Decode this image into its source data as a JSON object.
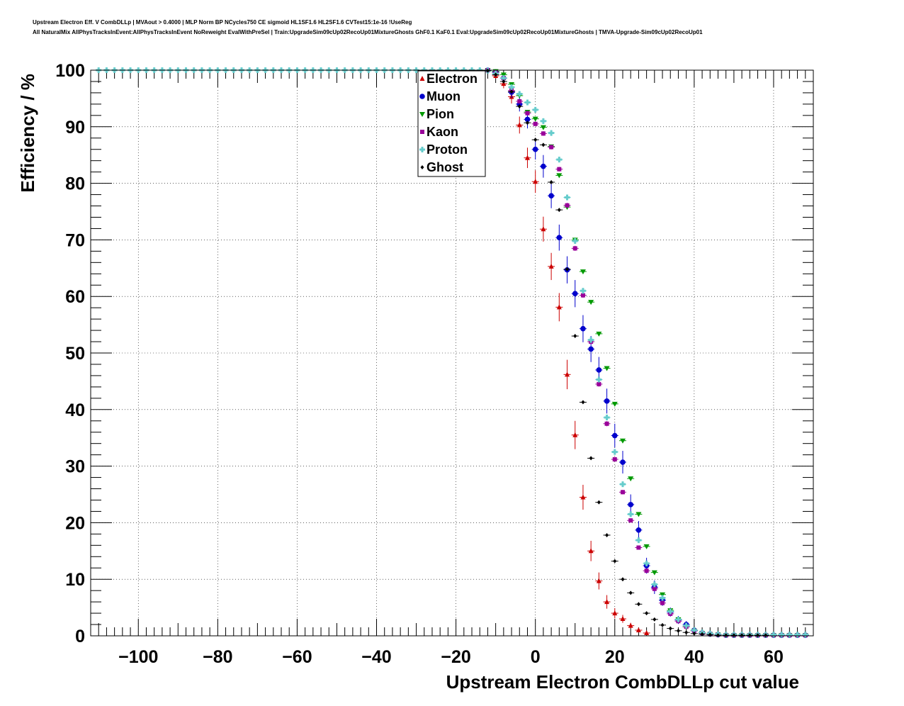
{
  "header": {
    "title_line1": "Upstream Electron Eff. V CombDLLp | MVAout > 0.4000 | MLP Norm BP NCycles750 CE sigmoid HL1SF1.6 HL2SF1.6 CVTest15:1e-16 !UseReg",
    "title_line2": "All NaturalMix AllPhysTracksInEvent:AllPhysTracksInEvent NoReweight EvalWithPreSel | Train:UpgradeSim09cUp02RecoUp01MixtureGhosts GhF0.1 KaF0.1 Eval:UpgradeSim09cUp02RecoUp01MixtureGhosts | TMVA-Upgrade-Sim09cUp02RecoUp01"
  },
  "chart_data": {
    "type": "scatter",
    "xlabel": "Upstream Electron CombDLLp cut value",
    "ylabel": "Efficiency / %",
    "xlim": [
      -112,
      70
    ],
    "ylim": [
      0,
      100
    ],
    "xticks": [
      -100,
      -80,
      -60,
      -40,
      -20,
      0,
      20,
      40,
      60
    ],
    "xtick_labels": [
      "−100",
      "−80",
      "−60",
      "−40",
      "−20",
      "0",
      "20",
      "40",
      "60"
    ],
    "yticks": [
      0,
      10,
      20,
      30,
      40,
      50,
      60,
      70,
      80,
      90,
      100
    ],
    "ytick_labels": [
      "0",
      "10",
      "20",
      "30",
      "40",
      "50",
      "60",
      "70",
      "80",
      "90",
      "100"
    ],
    "grid": true,
    "legend_position": "top-center",
    "plateau": {
      "x_start": -110,
      "x_end": -12,
      "step": 2,
      "y": 100
    },
    "series": [
      {
        "name": "Electron",
        "color": "#cc0000",
        "marker": "triangle-up",
        "x": [
          -10,
          -8,
          -6,
          -4,
          -2,
          0,
          2,
          4,
          6,
          8,
          10,
          12,
          14,
          16,
          18,
          20,
          22,
          24,
          26,
          28
        ],
        "y": [
          99.0,
          97.6,
          95.3,
          90.3,
          84.5,
          80.3,
          71.9,
          65.3,
          58.1,
          46.2,
          35.5,
          24.5,
          15.0,
          9.7,
          6.0,
          4.0,
          3.0,
          1.8,
          1.0,
          0.5
        ],
        "err": [
          0.5,
          0.8,
          1.2,
          1.5,
          1.8,
          2.0,
          2.2,
          2.4,
          2.5,
          2.6,
          2.5,
          2.2,
          1.8,
          1.5,
          1.2,
          0.9,
          0.7,
          0.5,
          0.4,
          0.3
        ]
      },
      {
        "name": "Muon",
        "color": "#0000cc",
        "marker": "circle",
        "x": [
          -12,
          -10,
          -8,
          -6,
          -4,
          -2,
          0,
          2,
          4,
          6,
          8,
          10,
          12,
          14,
          16,
          18,
          20,
          22,
          24,
          26,
          28,
          30,
          32,
          34,
          36,
          38,
          40,
          42,
          44,
          46,
          48,
          50,
          52,
          54,
          56,
          58,
          60,
          62,
          64,
          66,
          68
        ],
        "y": [
          100.0,
          99.7,
          98.6,
          96.1,
          94.0,
          91.3,
          86.0,
          83.0,
          77.8,
          70.4,
          64.7,
          60.5,
          54.3,
          50.7,
          47.0,
          41.5,
          35.4,
          30.7,
          23.2,
          18.7,
          12.4,
          8.6,
          6.3,
          4.2,
          2.8,
          2.0,
          1.0,
          0.5,
          0.3,
          0.2,
          0.1,
          0.1,
          0.1,
          0.1,
          0.1,
          0.1,
          0.1,
          0.1,
          0.1,
          0.1,
          0.1
        ],
        "err": [
          0.1,
          0.3,
          0.6,
          1.0,
          1.3,
          1.6,
          1.8,
          2.0,
          2.2,
          2.3,
          2.4,
          2.4,
          2.4,
          2.3,
          2.3,
          2.2,
          2.1,
          2.0,
          1.8,
          1.6,
          1.4,
          1.2,
          1.0,
          0.8,
          0.7,
          0.6,
          0.4,
          0.3,
          0.2,
          0.1,
          0.1,
          0.1,
          0.1,
          0.1,
          0.1,
          0.1,
          0.1,
          0.1,
          0.1,
          0.1,
          0.1
        ]
      },
      {
        "name": "Pion",
        "color": "#009900",
        "marker": "triangle-down",
        "x": [
          -12,
          -10,
          -8,
          -6,
          -4,
          -2,
          0,
          2,
          4,
          6,
          8,
          10,
          12,
          14,
          16,
          18,
          20,
          22,
          24,
          26,
          28,
          30,
          32,
          34,
          36,
          38,
          40,
          42,
          44,
          46,
          48,
          50,
          52,
          54,
          56,
          58,
          60,
          62,
          64,
          66,
          68
        ],
        "y": [
          100.0,
          99.8,
          99.2,
          97.5,
          95.5,
          92.6,
          91.4,
          89.9,
          86.5,
          81.4,
          75.8,
          70.0,
          64.4,
          59.0,
          53.4,
          47.3,
          41.0,
          34.5,
          27.8,
          21.5,
          15.8,
          11.2,
          7.3,
          4.5,
          2.9,
          1.6,
          0.9,
          0.5,
          0.3,
          0.2,
          0.1,
          0.1,
          0.1,
          0.1,
          0.1,
          0.1,
          0.1,
          0.1,
          0.1,
          0.1,
          0.1
        ],
        "err": [
          0.05,
          0.1,
          0.15,
          0.2,
          0.25,
          0.3,
          0.3,
          0.3,
          0.3,
          0.35,
          0.35,
          0.35,
          0.35,
          0.35,
          0.35,
          0.35,
          0.35,
          0.35,
          0.3,
          0.3,
          0.3,
          0.25,
          0.2,
          0.15,
          0.1,
          0.1,
          0.1,
          0.05,
          0.05,
          0.05,
          0.05,
          0.05,
          0.05,
          0.05,
          0.05,
          0.05,
          0.05,
          0.05,
          0.05,
          0.05,
          0.05
        ]
      },
      {
        "name": "Kaon",
        "color": "#990099",
        "marker": "square",
        "x": [
          -12,
          -10,
          -8,
          -6,
          -4,
          -2,
          0,
          2,
          4,
          6,
          8,
          10,
          12,
          14,
          16,
          18,
          20,
          22,
          24,
          26,
          28,
          30,
          32,
          34,
          36,
          38,
          40,
          42,
          44,
          46,
          48,
          50,
          52,
          54,
          56,
          58,
          60,
          62,
          64,
          66,
          68
        ],
        "y": [
          100.0,
          99.6,
          98.6,
          96.4,
          94.5,
          92.4,
          90.5,
          88.8,
          86.4,
          82.5,
          76.1,
          68.5,
          60.2,
          52.0,
          44.5,
          37.5,
          31.2,
          25.4,
          20.4,
          15.6,
          11.5,
          8.3,
          5.8,
          3.9,
          2.6,
          1.6,
          0.9,
          0.5,
          0.3,
          0.2,
          0.1,
          0.1,
          0.1,
          0.1,
          0.1,
          0.1,
          0.1,
          0.1,
          0.1,
          0.1,
          0.1
        ],
        "err": [
          0.05,
          0.1,
          0.2,
          0.3,
          0.3,
          0.35,
          0.35,
          0.4,
          0.4,
          0.4,
          0.45,
          0.45,
          0.45,
          0.45,
          0.45,
          0.45,
          0.4,
          0.4,
          0.35,
          0.35,
          0.3,
          0.25,
          0.2,
          0.15,
          0.1,
          0.1,
          0.1,
          0.05,
          0.05,
          0.05,
          0.05,
          0.05,
          0.05,
          0.05,
          0.05,
          0.05,
          0.05,
          0.05,
          0.05,
          0.05,
          0.05
        ]
      },
      {
        "name": "Proton",
        "color": "#66cccc",
        "marker": "cross",
        "x": [
          -110,
          -108,
          -106,
          -104,
          -102,
          -100,
          -98,
          -96,
          -94,
          -92,
          -90,
          -88,
          -86,
          -84,
          -82,
          -80,
          -78,
          -76,
          -74,
          -72,
          -70,
          -68,
          -66,
          -64,
          -62,
          -60,
          -58,
          -56,
          -54,
          -52,
          -50,
          -48,
          -46,
          -44,
          -42,
          -40,
          -38,
          -36,
          -34,
          -32,
          -30,
          -28,
          -26,
          -24,
          -22,
          -20,
          -18,
          -16,
          -14,
          -12,
          -10,
          -8,
          -6,
          -4,
          -2,
          0,
          2,
          4,
          6,
          8,
          10,
          12,
          14,
          16,
          18,
          20,
          22,
          24,
          26,
          28,
          30,
          32,
          34,
          36,
          38,
          40,
          42,
          44,
          46,
          48,
          50,
          52,
          54,
          56,
          58,
          60,
          62,
          64,
          66,
          68
        ],
        "y": [
          100,
          100,
          100,
          100,
          100,
          100,
          100,
          100,
          100,
          100,
          100,
          100,
          100,
          100,
          100,
          100,
          100,
          100,
          100,
          100,
          100,
          100,
          100,
          100,
          100,
          100,
          100,
          100,
          100,
          100,
          100,
          100,
          100,
          100,
          100,
          100,
          100,
          100,
          100,
          100,
          100,
          100,
          100,
          100,
          100,
          100,
          100,
          100,
          100.0,
          99.9,
          99.4,
          98.6,
          97.0,
          95.8,
          94.3,
          93.0,
          91.0,
          88.9,
          84.2,
          77.5,
          69.8,
          61.0,
          52.3,
          45.3,
          38.6,
          32.5,
          26.8,
          21.5,
          16.9,
          12.8,
          9.1,
          6.7,
          4.3,
          2.9,
          1.8,
          1.0,
          0.6,
          0.4,
          0.3,
          0.2,
          0.2,
          0.2,
          0.2,
          0.2,
          0.2,
          0.2,
          0.2,
          0.2,
          0.2,
          0.2
        ],
        "err": [
          0.05,
          0.05,
          0.05,
          0.05,
          0.05,
          0.05,
          0.05,
          0.05,
          0.05,
          0.05,
          0.05,
          0.05,
          0.05,
          0.05,
          0.05,
          0.05,
          0.05,
          0.05,
          0.05,
          0.05,
          0.05,
          0.05,
          0.05,
          0.05,
          0.05,
          0.05,
          0.05,
          0.05,
          0.05,
          0.05,
          0.05,
          0.05,
          0.05,
          0.05,
          0.05,
          0.05,
          0.05,
          0.05,
          0.05,
          0.05,
          0.05,
          0.05,
          0.05,
          0.05,
          0.05,
          0.05,
          0.05,
          0.05,
          0.05,
          0.1,
          0.2,
          0.3,
          0.3,
          0.4,
          0.4,
          0.4,
          0.5,
          0.5,
          0.5,
          0.5,
          0.5,
          0.5,
          0.5,
          0.5,
          0.5,
          0.5,
          0.5,
          0.4,
          0.4,
          0.4,
          0.3,
          0.3,
          0.2,
          0.2,
          0.1,
          0.1,
          0.1,
          0.05,
          0.05,
          0.05,
          0.05,
          0.05,
          0.05,
          0.05,
          0.05,
          0.05,
          0.05,
          0.05,
          0.05,
          0.05
        ]
      },
      {
        "name": "Ghost",
        "color": "#000000",
        "marker": "diamond",
        "x": [
          -12,
          -10,
          -8,
          -6,
          -4,
          -2,
          0,
          2,
          4,
          6,
          8,
          10,
          12,
          14,
          16,
          18,
          20,
          22,
          24,
          26,
          28,
          30,
          32,
          34,
          36,
          38,
          40,
          42,
          44,
          46,
          48,
          50,
          52,
          54,
          56,
          58
        ],
        "y": [
          99.9,
          99.2,
          98.0,
          96.2,
          93.6,
          90.7,
          87.7,
          86.8,
          80.2,
          75.3,
          64.8,
          53.0,
          41.3,
          31.4,
          23.6,
          17.8,
          13.2,
          10.0,
          7.6,
          5.6,
          4.0,
          2.9,
          1.9,
          1.3,
          0.9,
          0.6,
          0.4,
          0.3,
          0.2,
          0.1,
          0.1,
          0.1,
          0.1,
          0.1,
          0.1,
          0.1
        ],
        "err": [
          0.1,
          0.15,
          0.2,
          0.25,
          0.3,
          0.3,
          0.3,
          0.3,
          0.3,
          0.3,
          0.3,
          0.3,
          0.3,
          0.3,
          0.25,
          0.2,
          0.2,
          0.2,
          0.15,
          0.15,
          0.1,
          0.1,
          0.1,
          0.05,
          0.05,
          0.05,
          0.05,
          0.05,
          0.05,
          0.05,
          0.05,
          0.05,
          0.05,
          0.05,
          0.05,
          0.05
        ]
      }
    ]
  }
}
